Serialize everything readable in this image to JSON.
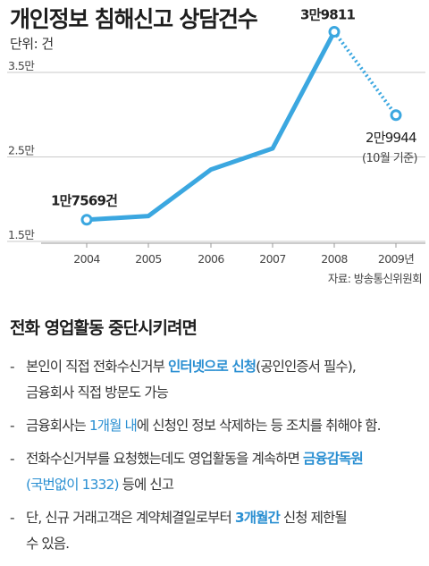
{
  "title": "개인정보 침해신고 상담건수",
  "unit": "단위: 건",
  "source": "자료: 방송통신위원회",
  "chart_data": {
    "type": "line",
    "categories": [
      "2004",
      "2005",
      "2006",
      "2007",
      "2008",
      "2009년"
    ],
    "values": [
      17569,
      18000,
      23500,
      26000,
      39811,
      29944
    ],
    "yticks": [
      {
        "value": 35000,
        "label": "3.5만"
      },
      {
        "value": 25000,
        "label": "2.5만"
      },
      {
        "value": 15000,
        "label": "1.5만"
      }
    ],
    "ylim": [
      15000,
      40000
    ],
    "projected_from_index": 4,
    "line_color": "#3ba7e0",
    "data_labels": [
      {
        "index": 0,
        "text": "1만7569건"
      },
      {
        "index": 4,
        "text": "3만9811"
      },
      {
        "index": 5,
        "text": "2만9944",
        "note": "(10월 기준)"
      }
    ]
  },
  "section": {
    "title": "전화 영업활동 중단시키려면",
    "items": [
      [
        {
          "t": "본인이 직접 전화수신거부 "
        },
        {
          "t": "인터넷으로 신청",
          "hl": true
        },
        {
          "t": "(공인인증서 필수),"
        },
        {
          "t": "금융회사 직접 방문도 가능",
          "br": true
        }
      ],
      [
        {
          "t": "금융회사는 "
        },
        {
          "t": "1개월 내",
          "hl2": true
        },
        {
          "t": "에 신청인 정보 삭제하는 등 조치를 취해야 함."
        }
      ],
      [
        {
          "t": "전화수신거부를 요청했는데도 영업활동을 계속하면 "
        },
        {
          "t": "금융감독원",
          "hl": true
        },
        {
          "t": "(국번없이 1332)",
          "hl2": true,
          "br": true
        },
        {
          "t": " 등에 신고"
        }
      ],
      [
        {
          "t": "단, 신규 거래고객은 계약체결일로부터 "
        },
        {
          "t": "3개월간",
          "hl": true
        },
        {
          "t": " 신청 제한될"
        },
        {
          "t": "수 있음.",
          "br": true
        }
      ]
    ]
  }
}
